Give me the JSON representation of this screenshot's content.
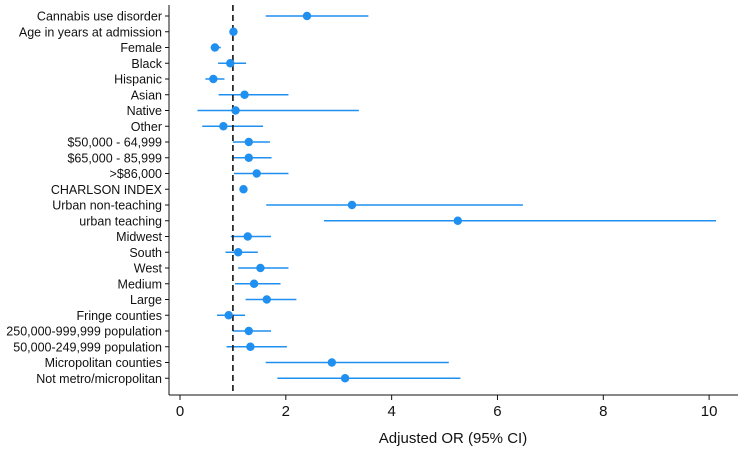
{
  "chart_data": {
    "type": "forest",
    "title": "",
    "xlabel": "Adjusted OR (95% CI)",
    "xlim": [
      0,
      10.3
    ],
    "xticks": [
      0,
      2,
      4,
      6,
      8,
      10
    ],
    "reference_line": 1,
    "grid": false,
    "colors": {
      "marker": "#1f8ff0",
      "highlight_label": "#e8231f",
      "label": "#111111",
      "reference_line": "#111111"
    },
    "rows": [
      {
        "label": "Cannabis use disorder",
        "or": 2.4,
        "lo": 1.62,
        "hi": 3.56,
        "highlight": true
      },
      {
        "label": "Age in years at admission",
        "or": 1.01,
        "lo": 1.0,
        "hi": 1.02
      },
      {
        "label": "Female",
        "or": 0.66,
        "lo": 0.58,
        "hi": 0.77
      },
      {
        "label": "Black",
        "or": 0.95,
        "lo": 0.72,
        "hi": 1.25
      },
      {
        "label": "Hispanic",
        "or": 0.63,
        "lo": 0.48,
        "hi": 0.84
      },
      {
        "label": "Asian",
        "or": 1.22,
        "lo": 0.73,
        "hi": 2.05
      },
      {
        "label": "Native",
        "or": 1.05,
        "lo": 0.33,
        "hi": 3.38
      },
      {
        "label": "Other",
        "or": 0.82,
        "lo": 0.42,
        "hi": 1.57
      },
      {
        "label": "$50,000 - 64,999",
        "or": 1.3,
        "lo": 1.0,
        "hi": 1.7
      },
      {
        "label": "$65,000 - 85,999",
        "or": 1.3,
        "lo": 0.99,
        "hi": 1.73
      },
      {
        "label": ">$86,000",
        "or": 1.45,
        "lo": 1.02,
        "hi": 2.05
      },
      {
        "label": "CHARLSON INDEX",
        "or": 1.2,
        "lo": 1.15,
        "hi": 1.25
      },
      {
        "label": "Urban non-teaching",
        "or": 3.25,
        "lo": 1.63,
        "hi": 6.48
      },
      {
        "label": "urban teaching",
        "or": 5.25,
        "lo": 2.72,
        "hi": 10.13
      },
      {
        "label": "Midwest",
        "or": 1.28,
        "lo": 0.96,
        "hi": 1.72
      },
      {
        "label": "South",
        "or": 1.1,
        "lo": 0.86,
        "hi": 1.47
      },
      {
        "label": "West",
        "or": 1.52,
        "lo": 1.1,
        "hi": 2.05
      },
      {
        "label": "Medium",
        "or": 1.4,
        "lo": 1.04,
        "hi": 1.9
      },
      {
        "label": "Large",
        "or": 1.64,
        "lo": 1.24,
        "hi": 2.2
      },
      {
        "label": "Fringe counties",
        "or": 0.92,
        "lo": 0.7,
        "hi": 1.23
      },
      {
        "label": "250,000-999,999 population",
        "or": 1.3,
        "lo": 1.0,
        "hi": 1.72
      },
      {
        "label": "50,000-249,999 population",
        "or": 1.33,
        "lo": 0.88,
        "hi": 2.02
      },
      {
        "label": "Micropolitan counties",
        "or": 2.87,
        "lo": 1.62,
        "hi": 5.08
      },
      {
        "label": "Not metro/micropolitan",
        "or": 3.12,
        "lo": 1.84,
        "hi": 5.3
      }
    ]
  }
}
